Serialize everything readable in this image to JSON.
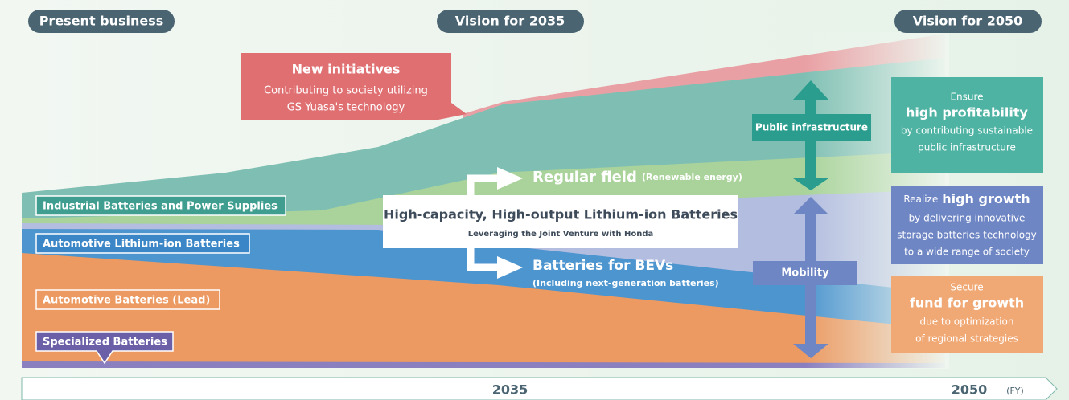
{
  "headers": {
    "present": "Present business",
    "vision_2035": "Vision for 2035",
    "vision_2050": "Vision for 2050"
  },
  "new_initiatives": {
    "title": "New initiatives",
    "lines": [
      "Contributing to society utilizing",
      "GS Yuasa's technology"
    ]
  },
  "bands": [
    "Industrial Batteries and Power Supplies",
    "Automotive Lithium-ion Batteries",
    "Automotive Batteries (Lead)",
    "Specialized Batteries"
  ],
  "center": {
    "title": "High-capacity, High-output Lithium-ion Batteries",
    "subtitle": "Leveraging the Joint Venture with Honda"
  },
  "regular_field": {
    "title": "Regular field",
    "note": "(Renewable energy)"
  },
  "bev": {
    "title": "Batteries for BEVs",
    "note": "(Including next-generation batteries)"
  },
  "public_infrastructure": "Public infrastructure",
  "mobility": "Mobility",
  "goals": [
    {
      "lead": "Ensure",
      "key": "high profitability",
      "lines": [
        "by contributing sustainable",
        "public infrastructure"
      ]
    },
    {
      "lead": "Realize",
      "key": "high growth",
      "lines": [
        "by delivering innovative",
        "storage batteries technology",
        "to a wide range of society"
      ]
    },
    {
      "lead": "Secure",
      "key": "fund for growth",
      "lines": [
        "due to optimization",
        "of regional strategies"
      ]
    }
  ],
  "timeline": {
    "mid": "2035",
    "end": "2050",
    "unit": "(FY)"
  }
}
